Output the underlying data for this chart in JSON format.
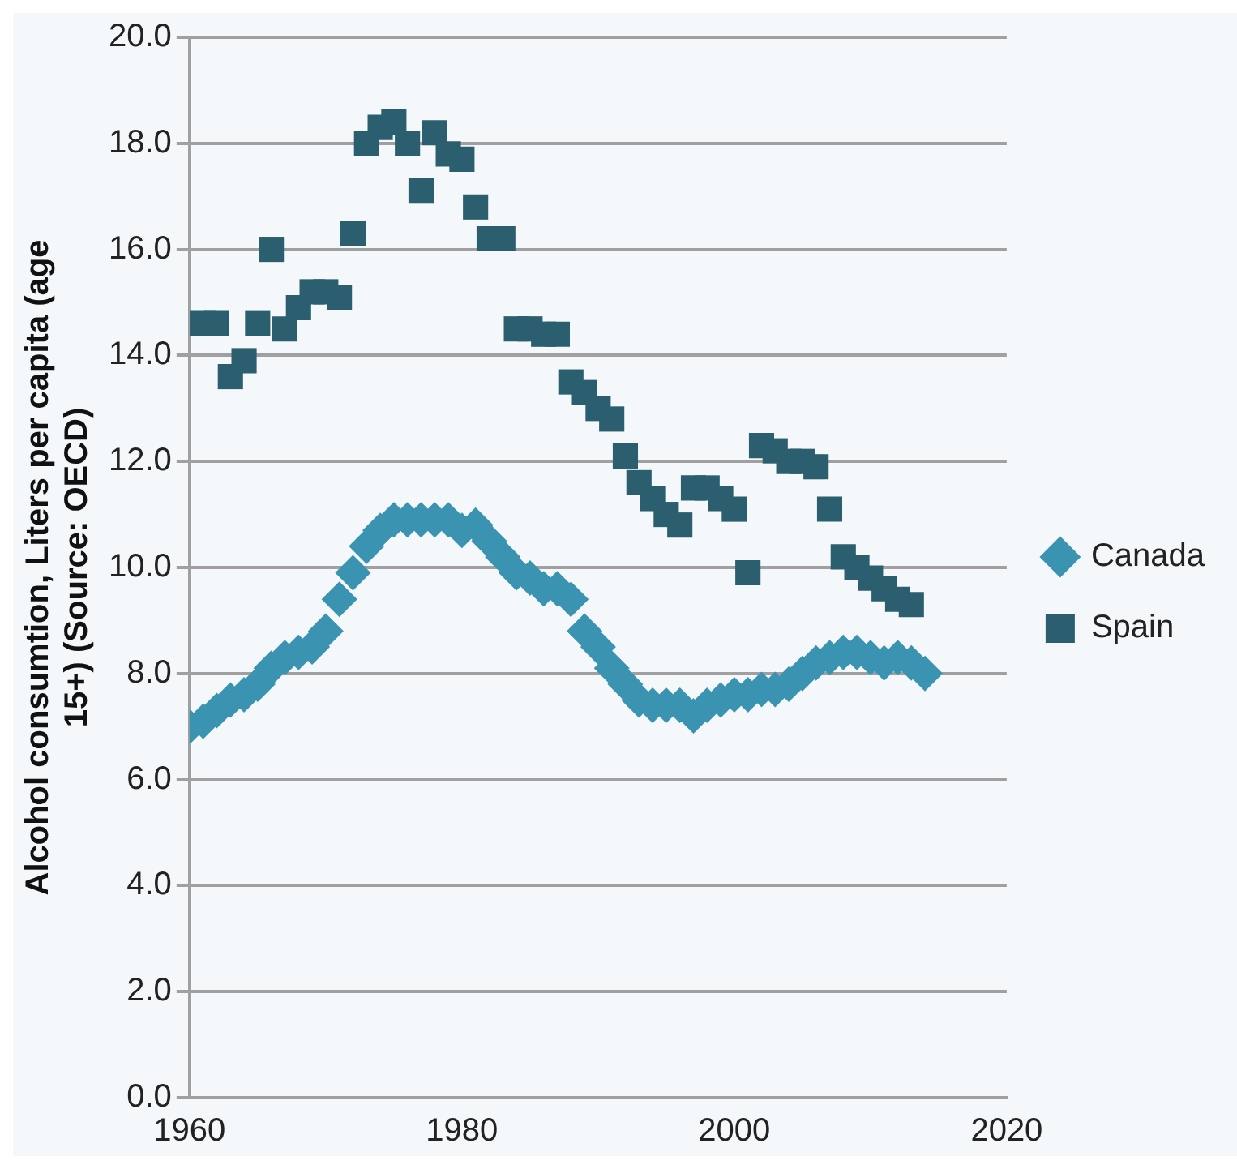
{
  "chart_data": {
    "type": "scatter",
    "ylabel": "Alcohol consumtion, Liters per capita (age 15+) (Source: OECD)",
    "xlim": [
      1960,
      2020
    ],
    "xticks": [
      1960,
      1980,
      2000,
      2020
    ],
    "ylim": [
      0,
      20
    ],
    "yticks": [
      {
        "value": 0,
        "label": "0.0"
      },
      {
        "value": 2,
        "label": "2.0"
      },
      {
        "value": 4,
        "label": "4.0"
      },
      {
        "value": 6,
        "label": "6.0"
      },
      {
        "value": 8,
        "label": "8.0"
      },
      {
        "value": 10,
        "label": "10.0"
      },
      {
        "value": 12,
        "label": "12.0"
      },
      {
        "value": 14,
        "label": "14.0"
      },
      {
        "value": 16,
        "label": "16.0"
      },
      {
        "value": 18,
        "label": "18.0"
      },
      {
        "value": 20,
        "label": "20.0"
      }
    ],
    "grid": "y",
    "legend": "right",
    "series": [
      {
        "name": "Canada",
        "color": "#3a93b0",
        "marker": "diamond",
        "x": [
          1960,
          1961,
          1962,
          1963,
          1964,
          1965,
          1966,
          1967,
          1968,
          1969,
          1970,
          1971,
          1972,
          1973,
          1974,
          1975,
          1976,
          1977,
          1978,
          1979,
          1980,
          1981,
          1982,
          1983,
          1984,
          1985,
          1986,
          1987,
          1988,
          1989,
          1990,
          1991,
          1992,
          1993,
          1994,
          1995,
          1996,
          1997,
          1998,
          1999,
          2000,
          2001,
          2002,
          2003,
          2004,
          2005,
          2006,
          2007,
          2008,
          2009,
          2010,
          2011,
          2012,
          2013,
          2014
        ],
        "values": [
          7.0,
          7.1,
          7.3,
          7.5,
          7.6,
          7.8,
          8.1,
          8.3,
          8.4,
          8.5,
          8.8,
          9.4,
          9.9,
          10.4,
          10.7,
          10.9,
          10.9,
          10.9,
          10.9,
          10.9,
          10.7,
          10.8,
          10.5,
          10.2,
          9.9,
          9.8,
          9.6,
          9.6,
          9.4,
          8.8,
          8.5,
          8.1,
          7.8,
          7.5,
          7.4,
          7.4,
          7.4,
          7.2,
          7.4,
          7.5,
          7.6,
          7.6,
          7.7,
          7.7,
          7.8,
          8.0,
          8.2,
          8.3,
          8.4,
          8.4,
          8.3,
          8.2,
          8.3,
          8.2,
          8.0
        ]
      },
      {
        "name": "Spain",
        "color": "#2b5e6e",
        "marker": "square",
        "x": [
          1961,
          1962,
          1963,
          1964,
          1965,
          1966,
          1967,
          1968,
          1969,
          1970,
          1971,
          1972,
          1973,
          1974,
          1975,
          1976,
          1977,
          1978,
          1979,
          1980,
          1981,
          1982,
          1983,
          1984,
          1985,
          1986,
          1987,
          1988,
          1989,
          1990,
          1991,
          1992,
          1993,
          1994,
          1995,
          1996,
          1997,
          1998,
          1999,
          2000,
          2001,
          2002,
          2003,
          2004,
          2005,
          2006,
          2007,
          2008,
          2009,
          2010,
          2011,
          2012,
          2013
        ],
        "values": [
          14.6,
          14.6,
          13.6,
          13.9,
          14.6,
          16.0,
          14.5,
          14.9,
          15.2,
          15.2,
          15.1,
          16.3,
          18.0,
          18.3,
          18.4,
          18.0,
          17.1,
          18.2,
          17.8,
          17.7,
          16.8,
          16.2,
          16.2,
          14.5,
          14.5,
          14.4,
          14.4,
          13.5,
          13.3,
          13.0,
          12.8,
          12.1,
          11.6,
          11.3,
          11.0,
          10.8,
          11.5,
          11.5,
          11.3,
          11.1,
          9.9,
          12.3,
          12.2,
          12.0,
          12.0,
          11.9,
          11.1,
          10.2,
          10.0,
          9.8,
          9.6,
          9.4,
          9.3
        ]
      }
    ]
  }
}
